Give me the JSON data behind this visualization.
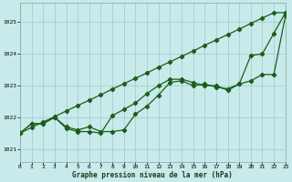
{
  "xlabel": "Graphe pression niveau de la mer (hPa)",
  "bg_color": "#c8eaea",
  "plot_bg_color": "#c8eaea",
  "grid_color": "#a0c8c8",
  "line_color": "#1a5e1a",
  "x_ticks": [
    0,
    1,
    2,
    3,
    4,
    5,
    6,
    7,
    8,
    9,
    10,
    11,
    12,
    13,
    14,
    15,
    16,
    17,
    18,
    19,
    20,
    21,
    22,
    23
  ],
  "y_ticks": [
    1021,
    1022,
    1023,
    1024,
    1025
  ],
  "ylim": [
    1020.6,
    1025.6
  ],
  "xlim": [
    0,
    23
  ],
  "line1_straight": [
    1021.5,
    1021.68,
    1021.85,
    1022.02,
    1022.2,
    1022.37,
    1022.54,
    1022.71,
    1022.89,
    1023.06,
    1023.23,
    1023.4,
    1023.58,
    1023.75,
    1023.92,
    1024.09,
    1024.27,
    1024.44,
    1024.61,
    1024.78,
    1024.96,
    1025.13,
    1025.3,
    1025.3
  ],
  "line2_mid": [
    1021.5,
    1021.8,
    1021.8,
    1022.0,
    1021.7,
    1021.6,
    1021.7,
    1021.55,
    1021.55,
    1021.6,
    1022.1,
    1022.35,
    1022.7,
    1023.1,
    1023.15,
    1023.0,
    1023.05,
    1022.95,
    1022.9,
    1023.05,
    1023.15,
    1023.35,
    1023.35,
    1025.2
  ],
  "line3_wiggly": [
    1021.5,
    1021.8,
    1021.8,
    1022.0,
    1021.65,
    1021.55,
    1021.55,
    1021.5,
    1022.05,
    1022.25,
    1022.45,
    1022.75,
    1023.0,
    1023.2,
    1023.2,
    1023.1,
    1023.0,
    1023.0,
    1022.85,
    1023.05,
    1023.95,
    1024.0,
    1024.65,
    1025.3
  ],
  "marker": "D",
  "markersize": 2.2,
  "linewidth": 0.9
}
